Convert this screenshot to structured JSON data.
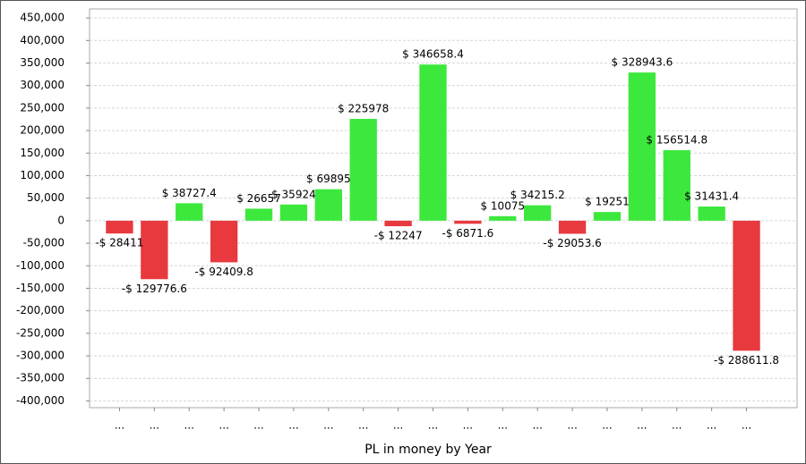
{
  "chart_data": {
    "type": "bar",
    "x_label": "PL in money by Year",
    "categories": [
      "...",
      "...",
      "...",
      "...",
      "...",
      "...",
      "...",
      "...",
      "...",
      "...",
      "...",
      "...",
      "...",
      "...",
      "...",
      "...",
      "...",
      "...",
      "..."
    ],
    "values": [
      -28411,
      -129776.6,
      38727.4,
      -92409.8,
      26657,
      35924,
      69895,
      225978,
      -12247,
      346658.4,
      -6871.6,
      10075,
      34215.2,
      -29053.6,
      19251,
      328943.6,
      156514.8,
      31431.4,
      -288611.8
    ],
    "value_labels": [
      "-$ 28411",
      "-$ 129776.6",
      "$ 38727.4",
      "-$ 92409.8",
      "$ 26657",
      "$ 35924",
      "$ 69895",
      "$ 225978",
      "-$ 12247",
      "$ 346658.4",
      "-$ 6871.6",
      "$ 10075",
      "$ 34215.2",
      "-$ 29053.6",
      "$ 19251",
      "$ 328943.6",
      "$ 156514.8",
      "$ 31431.4",
      "-$ 288611.8"
    ],
    "positive_color": "#3de83d",
    "negative_color": "#e8393f",
    "ylim": [
      -415000,
      470000
    ],
    "yticks": [
      {
        "value": -400000,
        "label": "-400,000"
      },
      {
        "value": -350000,
        "label": "-350,000"
      },
      {
        "value": -300000,
        "label": "-300,000"
      },
      {
        "value": -250000,
        "label": "-250,000"
      },
      {
        "value": -200000,
        "label": "-200,000"
      },
      {
        "value": -150000,
        "label": "-150,000"
      },
      {
        "value": -100000,
        "label": "-100,000"
      },
      {
        "value": -50000,
        "label": "-50,000"
      },
      0,
      {
        "value": 50000,
        "label": "50,000"
      },
      {
        "value": 100000,
        "label": "100,000"
      },
      {
        "value": 150000,
        "label": "150,000"
      },
      {
        "value": 200000,
        "label": "200,000"
      },
      {
        "value": 250000,
        "label": "250,000"
      },
      {
        "value": 300000,
        "label": "300,000"
      },
      {
        "value": 350000,
        "label": "350,000"
      },
      {
        "value": 400000,
        "label": "400,000"
      },
      {
        "value": 450000,
        "label": "450,000"
      }
    ],
    "grid": true
  }
}
